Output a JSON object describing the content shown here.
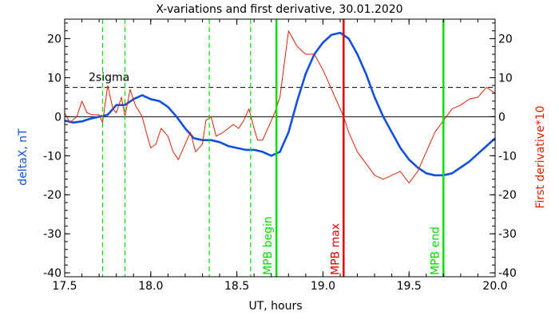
{
  "chart_data": {
    "type": "line",
    "title": "X-variations and first derivative, 30.01.2020",
    "xlabel": "UT, hours",
    "ylabel_left": "deltaX, nT",
    "ylabel_right": "First derivative*10",
    "xlim": [
      17.5,
      20.0
    ],
    "ylim": [
      -41,
      25
    ],
    "x_ticks": [
      "17.5",
      "18.0",
      "18.5",
      "19.0",
      "19.5",
      "20.0"
    ],
    "x_tick_values": [
      17.5,
      18.0,
      18.5,
      19.0,
      19.5,
      20.0
    ],
    "y_ticks": [
      "20",
      "10",
      "0",
      "-10",
      "-20",
      "-30",
      "-40"
    ],
    "y_tick_values": [
      20,
      10,
      0,
      -10,
      -20,
      -30,
      -40
    ],
    "threshold": {
      "label": "2sigma",
      "value": 7.5
    },
    "vlines": [
      {
        "x": 17.72,
        "style": "dashed",
        "color": "#00dd00"
      },
      {
        "x": 17.85,
        "style": "dashed",
        "color": "#00dd00"
      },
      {
        "x": 18.34,
        "style": "dashed",
        "color": "#00dd00"
      },
      {
        "x": 18.58,
        "style": "dashed",
        "color": "#00dd00"
      },
      {
        "x": 18.73,
        "style": "solid",
        "color": "#00dd00",
        "label": "MPB begin"
      },
      {
        "x": 19.12,
        "style": "solid",
        "color": "#dd0000",
        "label": "MPB max"
      },
      {
        "x": 19.7,
        "style": "solid",
        "color": "#00dd00",
        "label": "MPB end"
      }
    ],
    "series": [
      {
        "color": "#1050e0",
        "x": [
          17.5,
          17.55,
          17.6,
          17.65,
          17.7,
          17.75,
          17.8,
          17.85,
          17.9,
          17.95,
          18.0,
          18.05,
          18.1,
          18.15,
          18.2,
          18.25,
          18.3,
          18.35,
          18.4,
          18.45,
          18.5,
          18.55,
          18.6,
          18.65,
          18.7,
          18.75,
          18.8,
          18.85,
          18.9,
          18.95,
          19.0,
          19.05,
          19.1,
          19.15,
          19.2,
          19.25,
          19.3,
          19.35,
          19.4,
          19.45,
          19.5,
          19.55,
          19.6,
          19.65,
          19.7,
          19.75,
          19.8,
          19.85,
          19.9,
          19.95,
          20.0
        ],
        "values": [
          -1,
          -1.5,
          -1.2,
          -0.5,
          0,
          0.5,
          3,
          3,
          4.5,
          5.5,
          4.5,
          4,
          2.5,
          0,
          -3,
          -5.5,
          -6,
          -6,
          -6.5,
          -7.5,
          -8,
          -8.5,
          -8.5,
          -9,
          -10,
          -9,
          -4,
          4,
          11,
          16,
          19,
          21,
          21.5,
          20,
          16,
          11,
          5,
          0,
          -4,
          -8,
          -11,
          -13,
          -14.5,
          -15,
          -15,
          -14.5,
          -13,
          -11.5,
          -9.5,
          -7.5,
          -5.5
        ]
      },
      {
        "color": "#dd2200",
        "x": [
          17.5,
          17.53,
          17.57,
          17.6,
          17.63,
          17.66,
          17.7,
          17.72,
          17.75,
          17.78,
          17.8,
          17.83,
          17.85,
          17.88,
          17.91,
          17.95,
          17.98,
          18.0,
          18.03,
          18.06,
          18.1,
          18.13,
          18.16,
          18.2,
          18.23,
          18.26,
          18.3,
          18.32,
          18.35,
          18.38,
          18.42,
          18.45,
          18.48,
          18.51,
          18.54,
          18.57,
          18.6,
          18.62,
          18.65,
          18.68,
          18.7,
          18.72,
          18.75,
          18.8,
          18.85,
          18.9,
          18.95,
          19.0,
          19.05,
          19.1,
          19.12,
          19.15,
          19.2,
          19.25,
          19.3,
          19.35,
          19.4,
          19.45,
          19.5,
          19.55,
          19.6,
          19.65,
          19.7,
          19.75,
          19.8,
          19.85,
          19.9,
          19.95,
          20.0
        ],
        "values": [
          1,
          -1.5,
          0,
          4,
          1,
          0.5,
          0.5,
          -1.5,
          8,
          2,
          1,
          5,
          0,
          7,
          3,
          0,
          -5,
          -8,
          -7,
          -3,
          -5,
          -9,
          -11,
          -7,
          -4,
          -9,
          -7,
          -1,
          0,
          -5,
          -4,
          -3,
          -2,
          -3,
          -1,
          2,
          -3,
          -6,
          -6,
          -3,
          -1,
          1,
          5,
          22,
          18,
          16,
          16,
          12,
          7,
          2,
          0,
          -4,
          -9,
          -12,
          -15,
          -16,
          -15,
          -14,
          -17,
          -14,
          -9,
          -4,
          -1,
          2,
          3,
          4.5,
          5,
          7.5,
          6
        ]
      }
    ]
  }
}
